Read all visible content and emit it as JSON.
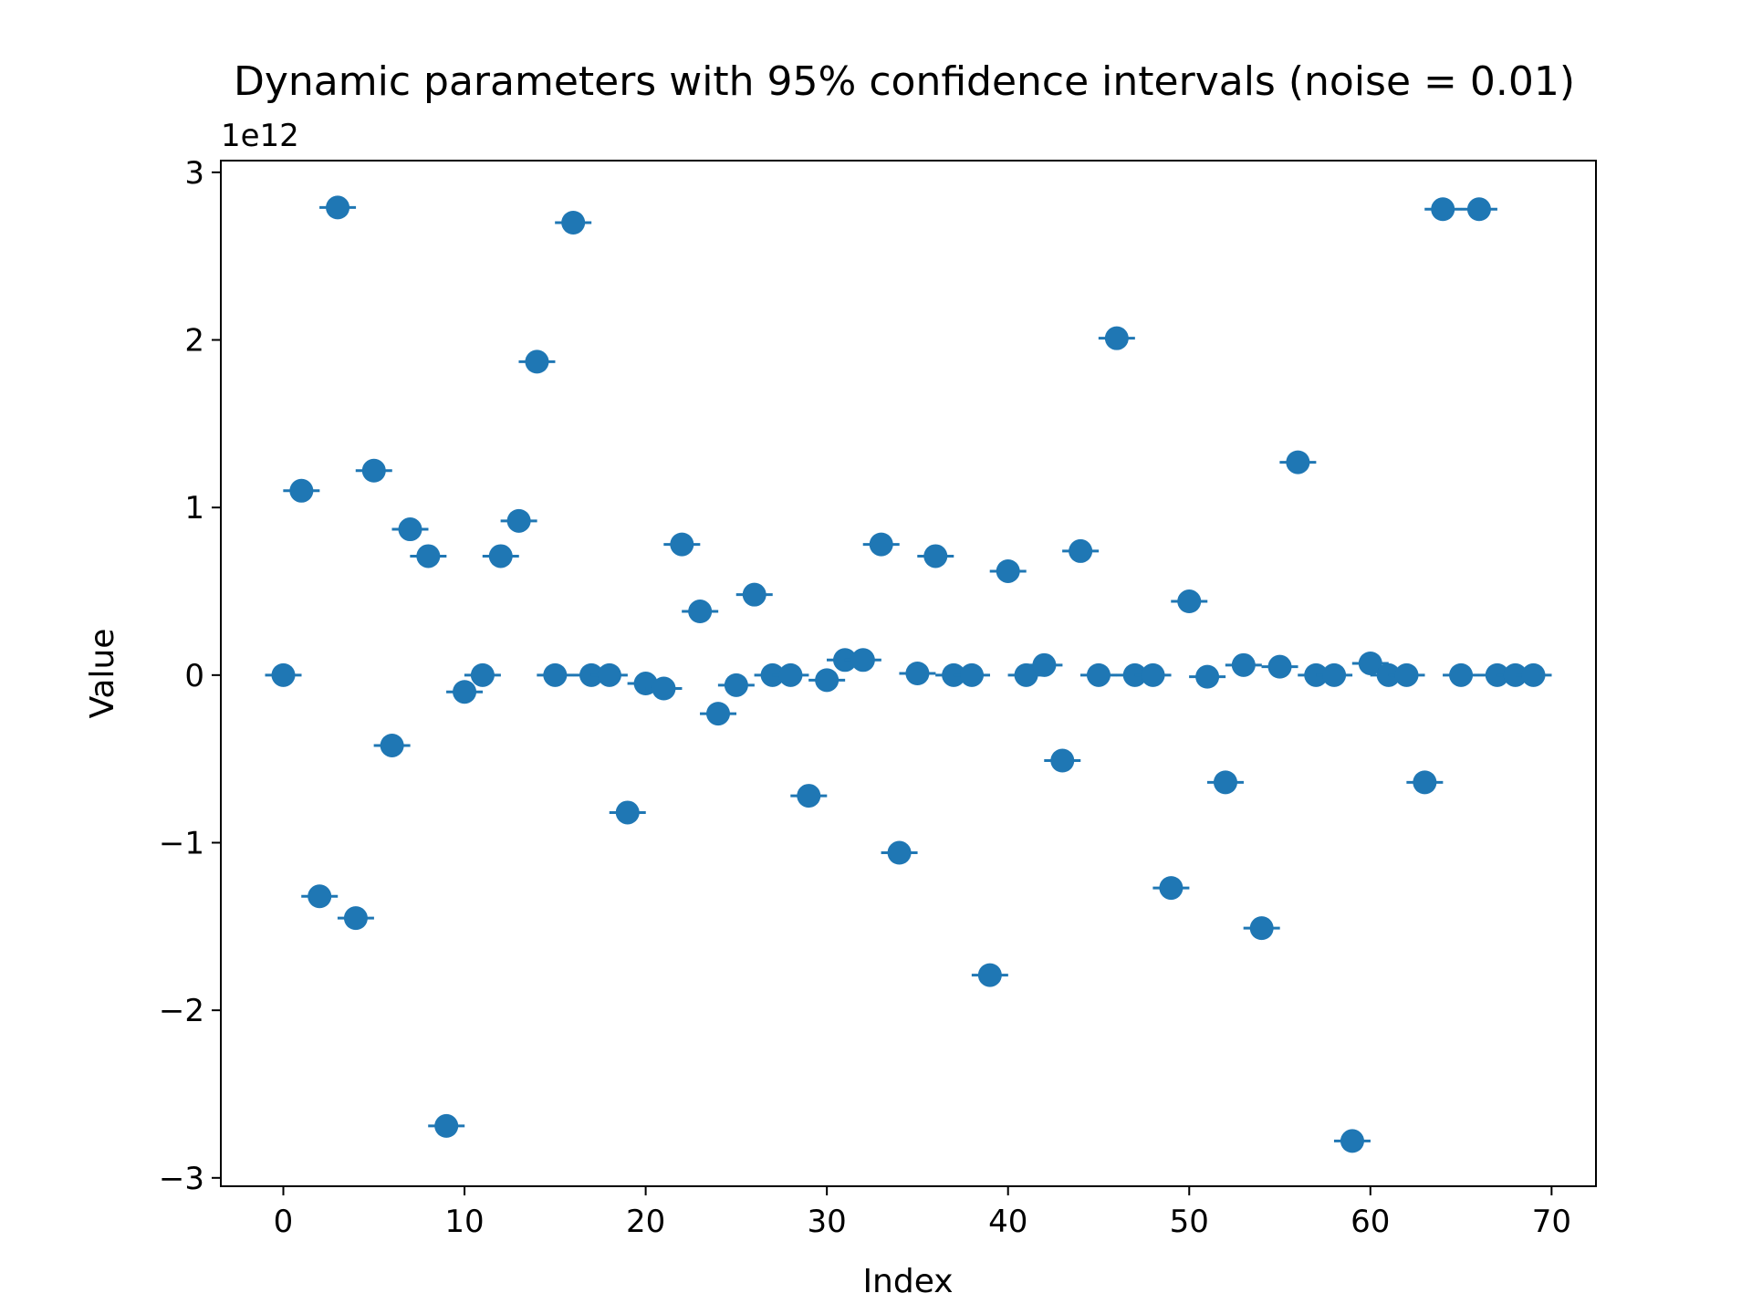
{
  "chart_data": {
    "type": "scatter",
    "title": "Dynamic parameters with 95% confidence intervals (noise = 0.01)",
    "xlabel": "Index",
    "ylabel": "Value",
    "y_offset_label": "1e12",
    "y_scale": 1000000000000.0,
    "xlim": [
      -3.45,
      72.45
    ],
    "ylim": [
      -3.05,
      3.07
    ],
    "xticks": [
      0,
      10,
      20,
      30,
      40,
      50,
      60,
      70
    ],
    "yticks": [
      -3,
      -2,
      -1,
      0,
      1,
      2,
      3
    ],
    "ytick_labels": [
      "−3",
      "−2",
      "−1",
      "0",
      "1",
      "2",
      "3"
    ],
    "marker_color": "#1f77b4",
    "grid": false,
    "errorbars": "horizontal caps, very small (95% confidence)",
    "x": [
      0,
      1,
      2,
      3,
      4,
      5,
      6,
      7,
      8,
      9,
      10,
      11,
      12,
      13,
      14,
      15,
      16,
      17,
      18,
      19,
      20,
      21,
      22,
      23,
      24,
      25,
      26,
      27,
      28,
      29,
      30,
      31,
      32,
      33,
      34,
      35,
      36,
      37,
      38,
      39,
      40,
      41,
      42,
      43,
      44,
      45,
      46,
      47,
      48,
      49,
      50,
      51,
      52,
      53,
      54,
      55,
      56,
      57,
      58,
      59,
      60,
      61,
      62,
      63,
      64,
      65,
      66,
      67,
      68,
      69
    ],
    "values": [
      0.0,
      1.1,
      -1.32,
      2.79,
      -1.45,
      1.22,
      -0.42,
      0.87,
      0.71,
      -2.69,
      -0.1,
      0.0,
      0.71,
      0.92,
      1.87,
      0.0,
      2.7,
      0.0,
      0.0,
      -0.82,
      -0.05,
      -0.08,
      0.78,
      0.38,
      -0.23,
      -0.06,
      0.48,
      0.0,
      0.0,
      -0.72,
      -0.03,
      0.09,
      0.09,
      0.78,
      -1.06,
      0.01,
      0.71,
      0.0,
      0.0,
      -1.79,
      0.62,
      0.0,
      0.06,
      -0.51,
      0.74,
      0.0,
      2.01,
      0.0,
      0.0,
      -1.27,
      0.44,
      -0.01,
      -0.64,
      0.06,
      -1.51,
      0.05,
      1.27,
      0.0,
      0.0,
      -2.78,
      0.07,
      0.0,
      0.0,
      -0.64,
      2.78,
      0.0,
      2.78,
      0.0,
      0.0,
      0.0
    ]
  }
}
